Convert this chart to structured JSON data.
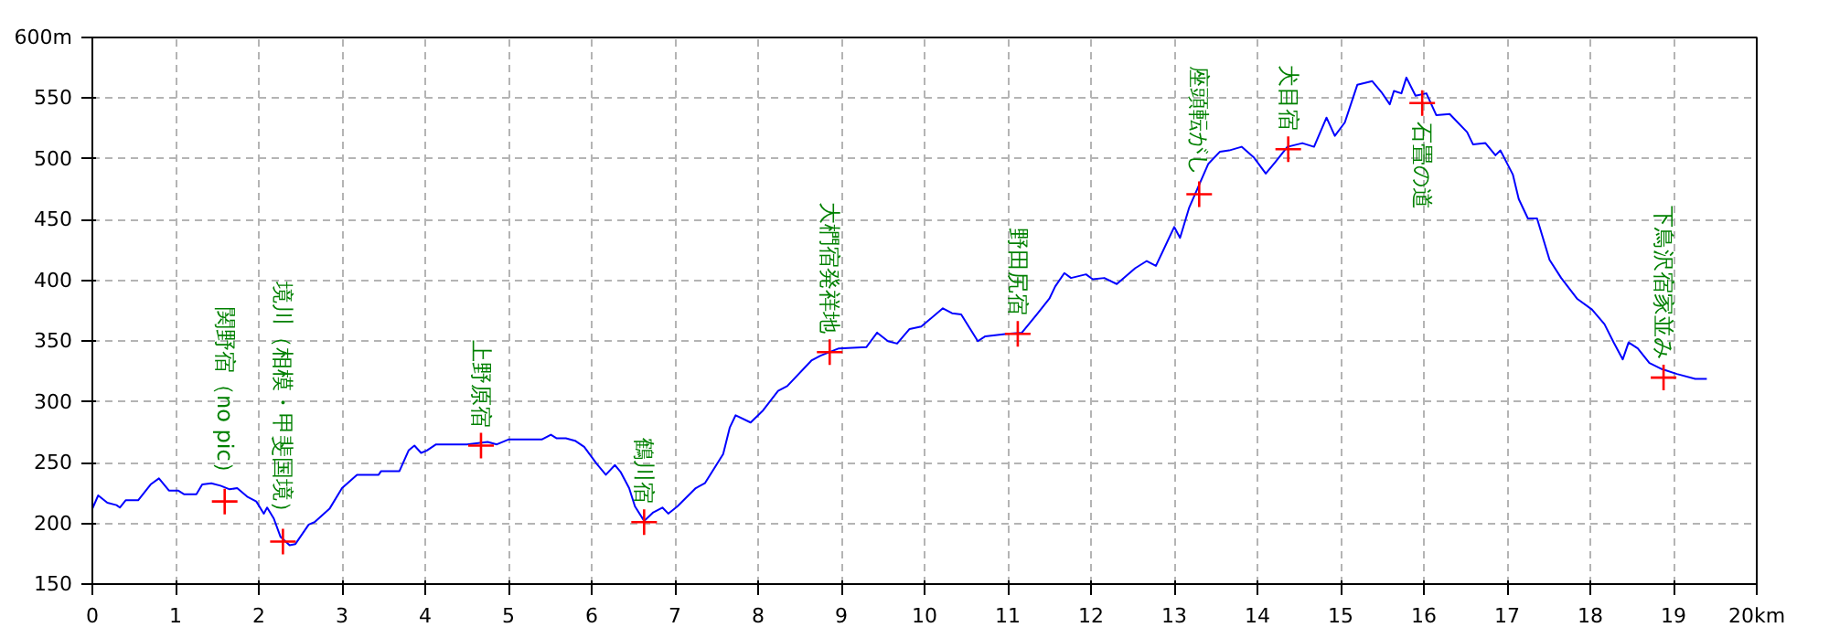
{
  "chart_data": {
    "type": "line",
    "xlim": [
      0,
      20
    ],
    "ylim": [
      150,
      600
    ],
    "xticks": [
      0,
      1,
      2,
      3,
      4,
      5,
      6,
      7,
      8,
      9,
      10,
      11,
      12,
      13,
      14,
      15,
      16,
      17,
      18,
      19,
      {
        "value": 20,
        "label": "20km"
      }
    ],
    "yticks": [
      150,
      200,
      250,
      300,
      350,
      400,
      450,
      500,
      550,
      {
        "value": 600,
        "label": "600m"
      }
    ],
    "grid": true,
    "series": [
      {
        "color": "#0000ff",
        "x": [
          0,
          0.07,
          0.18,
          0.29,
          0.33,
          0.4,
          0.55,
          0.7,
          0.8,
          0.92,
          1.03,
          1.1,
          1.25,
          1.32,
          1.43,
          1.54,
          1.65,
          1.74,
          1.86,
          1.97,
          2.06,
          2.1,
          2.18,
          2.26,
          2.37,
          2.44,
          2.6,
          2.67,
          2.85,
          3.0,
          3.18,
          3.44,
          3.47,
          3.69,
          3.8,
          3.87,
          3.95,
          4.02,
          4.13,
          4.5,
          4.75,
          4.86,
          5.0,
          5.4,
          5.51,
          5.58,
          5.69,
          5.8,
          5.91,
          6.06,
          6.17,
          6.28,
          6.35,
          6.45,
          6.52,
          6.63,
          6.74,
          6.85,
          6.92,
          7.03,
          7.25,
          7.36,
          7.58,
          7.66,
          7.73,
          7.91,
          8.06,
          8.24,
          8.35,
          8.64,
          8.75,
          8.97,
          9.3,
          9.43,
          9.56,
          9.67,
          9.82,
          9.96,
          10.22,
          10.33,
          10.44,
          10.64,
          10.73,
          10.99,
          11.17,
          11.35,
          11.5,
          11.57,
          11.68,
          11.76,
          11.94,
          12.02,
          12.16,
          12.31,
          12.53,
          12.67,
          12.78,
          13.0,
          13.07,
          13.18,
          13.41,
          13.55,
          13.66,
          13.81,
          13.96,
          14.1,
          14.21,
          14.36,
          14.54,
          14.68,
          14.83,
          14.93,
          15.05,
          15.2,
          15.38,
          15.49,
          15.59,
          15.64,
          15.73,
          15.79,
          15.9,
          16.03,
          16.15,
          16.31,
          16.52,
          16.59,
          16.74,
          16.86,
          16.92,
          17.07,
          17.14,
          17.25,
          17.36,
          17.51,
          17.65,
          17.84,
          18.02,
          18.17,
          18.28,
          18.39,
          18.46,
          18.57,
          18.71,
          18.86,
          19.04,
          19.26,
          19.4
        ],
        "values": [
          212,
          223,
          217,
          215,
          213,
          219,
          219,
          232,
          237,
          227,
          227,
          224,
          224,
          232,
          233,
          231,
          228,
          229,
          222,
          218,
          208,
          213,
          204,
          189,
          182,
          183,
          199,
          201,
          212,
          229,
          240,
          240,
          243,
          243,
          260,
          264,
          258,
          260,
          265,
          265,
          267,
          265,
          269,
          269,
          273,
          270,
          270,
          268,
          263,
          249,
          240,
          248,
          242,
          229,
          214,
          202,
          209,
          213,
          208,
          214,
          229,
          233,
          257,
          279,
          289,
          283,
          293,
          309,
          313,
          334,
          338,
          344,
          345,
          357,
          350,
          348,
          360,
          362,
          377,
          373,
          372,
          350,
          354,
          356,
          357,
          372,
          385,
          395,
          406,
          402,
          405,
          401,
          402,
          397,
          410,
          416,
          412,
          444,
          435,
          460,
          496,
          506,
          507,
          510,
          501,
          488,
          497,
          510,
          513,
          510,
          534,
          519,
          530,
          561,
          564,
          555,
          545,
          556,
          554,
          567,
          552,
          554,
          536,
          537,
          522,
          512,
          513,
          503,
          507,
          487,
          467,
          451,
          451,
          417,
          402,
          385,
          376,
          364,
          349,
          335,
          349,
          344,
          332,
          327,
          323,
          319,
          319
        ]
      },
      {
        "type": "scatter",
        "color": "#ff0000",
        "marker": "cross",
        "x": [
          1.59,
          2.29,
          4.67,
          6.63,
          8.86,
          11.12,
          13.3,
          14.37,
          15.98,
          18.88
        ],
        "values": [
          218,
          185,
          264,
          201,
          341,
          356,
          471,
          508,
          546,
          320
        ]
      }
    ],
    "annotations": [
      {
        "text": "関野宿（no pic）",
        "x": 1.59,
        "y": 218
      },
      {
        "text": "境川（相模・甲斐国境）",
        "x": 2.29,
        "y": 185
      },
      {
        "text": "上野原宿",
        "x": 4.67,
        "y": 264
      },
      {
        "text": "鶴川宿",
        "x": 6.63,
        "y": 201
      },
      {
        "text": "大椚宿発祥地",
        "x": 8.86,
        "y": 341
      },
      {
        "text": "野田尻宿",
        "x": 11.12,
        "y": 356
      },
      {
        "text": "座頭転がし",
        "x": 13.3,
        "y": 471
      },
      {
        "text": "犬目宿",
        "x": 14.37,
        "y": 508
      },
      {
        "text": "石畳の道",
        "x": 15.98,
        "y": 546
      },
      {
        "text": "下鳥沢宿家並み",
        "x": 18.88,
        "y": 320
      }
    ]
  }
}
